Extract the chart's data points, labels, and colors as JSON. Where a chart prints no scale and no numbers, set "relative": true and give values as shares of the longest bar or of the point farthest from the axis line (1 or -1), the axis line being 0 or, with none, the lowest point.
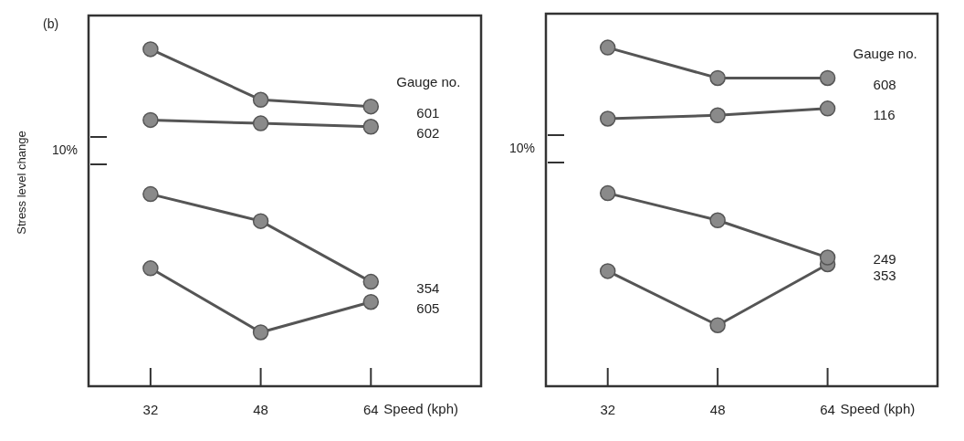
{
  "chart_data": [
    {
      "type": "line",
      "title": "(b)",
      "ylabel": "Stress level change",
      "xlabel": "Speed (kph)",
      "legend_title": "Gauge no.",
      "relative": true,
      "marker": "circle",
      "x": [
        32,
        48,
        64
      ],
      "xlim": [
        23,
        80
      ],
      "xticks": [
        32,
        48,
        64
      ],
      "annotations": [
        "10%"
      ],
      "series": [
        {
          "name": "601",
          "color": "#555555",
          "values": [
            1,
            0.85,
            0.83
          ]
        },
        {
          "name": "602",
          "color": "#555555",
          "values": [
            0.79,
            0.78,
            0.77
          ]
        },
        {
          "name": "354",
          "color": "#555555",
          "values": [
            0.57,
            0.49,
            0.31
          ]
        },
        {
          "name": "605",
          "color": "#555555",
          "values": [
            0.35,
            0.16,
            0.25
          ]
        }
      ]
    },
    {
      "type": "line",
      "xlabel": "Speed (kph)",
      "legend_title": "Gauge no.",
      "relative": true,
      "marker": "circle",
      "x": [
        32,
        48,
        64
      ],
      "xlim": [
        23,
        80
      ],
      "xticks": [
        32,
        48,
        64
      ],
      "annotations": [
        "10%"
      ],
      "series": [
        {
          "name": "608",
          "color": "#555555",
          "values": [
            1,
            0.91,
            0.91
          ]
        },
        {
          "name": "116",
          "color": "#555555",
          "values": [
            0.79,
            0.8,
            0.82
          ]
        },
        {
          "name": "249",
          "color": "#555555",
          "values": [
            0.57,
            0.49,
            0.38
          ]
        },
        {
          "name": "353",
          "color": "#555555",
          "values": [
            0.34,
            0.18,
            0.36
          ]
        }
      ]
    }
  ]
}
